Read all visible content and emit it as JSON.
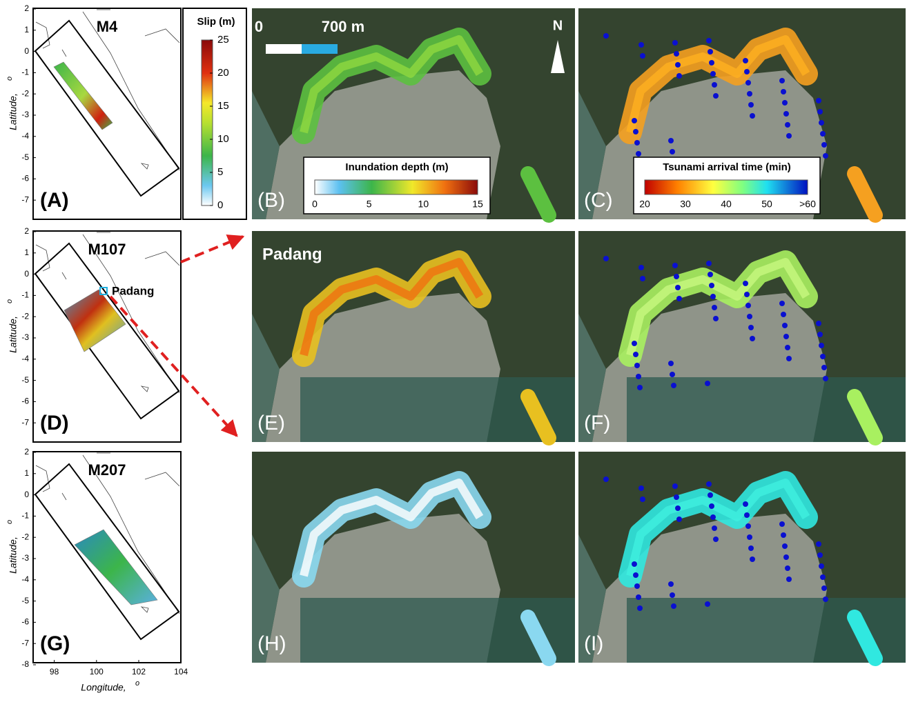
{
  "maps": [
    {
      "panel": "(A)",
      "model": "M4",
      "yticks": [
        2,
        1,
        0,
        -1,
        -2,
        -3,
        -4,
        -5,
        -6,
        -7
      ]
    },
    {
      "panel": "(D)",
      "model": "M107",
      "site": "Padang",
      "yticks": [
        2,
        1,
        0,
        -1,
        -2,
        -3,
        -4,
        -5,
        -6,
        -7
      ]
    },
    {
      "panel": "(G)",
      "model": "M207",
      "yticks": [
        2,
        1,
        0,
        -1,
        -2,
        -3,
        -4,
        -5,
        -6,
        -7,
        -8
      ]
    }
  ],
  "xticks": [
    98,
    100,
    102,
    104
  ],
  "ylabel": "Latitude,",
  "xlabel": "Longitude,",
  "degree": "o",
  "slip_colorbar": {
    "title": "Slip (m)",
    "ticks": [
      0,
      5,
      10,
      15,
      20,
      25
    ]
  },
  "scale_bar": {
    "start": "0",
    "end": "700 m"
  },
  "north": "N",
  "site_label": "Padang",
  "inundation_colorbar": {
    "title": "Inundation depth (m)",
    "ticks": [
      0,
      5,
      10,
      15
    ]
  },
  "arrival_colorbar": {
    "title": "Tsunami arrival time (min)",
    "ticks": [
      20,
      30,
      40,
      50,
      ">60"
    ]
  },
  "photos": [
    {
      "panel": "(B)"
    },
    {
      "panel": "(C)"
    },
    {
      "panel": "(E)"
    },
    {
      "panel": "(F)"
    },
    {
      "panel": "(H)"
    },
    {
      "panel": "(I)"
    }
  ]
}
